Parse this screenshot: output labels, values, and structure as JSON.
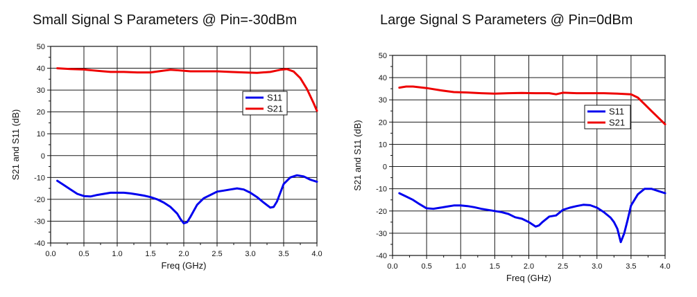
{
  "chart_data": [
    {
      "type": "line",
      "title": "Small Signal S Parameters @ Pin=-30dBm",
      "xlabel": "Freq (GHz)",
      "ylabel": "S21 and S11 (dB)",
      "xlim": [
        0,
        4
      ],
      "ylim": [
        -40,
        50
      ],
      "xticks": [
        "0.0",
        "0.5",
        "1.0",
        "1.5",
        "2.0",
        "2.5",
        "3.0",
        "3.5",
        "4.0"
      ],
      "yticks": [
        "-40",
        "-30",
        "-20",
        "-10",
        "0",
        "10",
        "20",
        "30",
        "40",
        "50"
      ],
      "grid": true,
      "legend_position": "center-right",
      "series": [
        {
          "name": "S11",
          "color": "#0000ee",
          "x": [
            0.1,
            0.2,
            0.3,
            0.4,
            0.5,
            0.6,
            0.7,
            0.8,
            0.9,
            1.0,
            1.1,
            1.2,
            1.3,
            1.4,
            1.5,
            1.6,
            1.7,
            1.8,
            1.85,
            1.9,
            1.95,
            2.0,
            2.05,
            2.1,
            2.2,
            2.3,
            2.4,
            2.5,
            2.6,
            2.7,
            2.8,
            2.9,
            3.0,
            3.1,
            3.2,
            3.3,
            3.35,
            3.4,
            3.45,
            3.5,
            3.6,
            3.7,
            3.8,
            3.9,
            4.0
          ],
          "values": [
            -11.5,
            -13.5,
            -15.5,
            -17.5,
            -18.5,
            -18.7,
            -18.0,
            -17.5,
            -17.0,
            -17.0,
            -17.0,
            -17.3,
            -17.8,
            -18.3,
            -19.0,
            -20.0,
            -21.5,
            -23.5,
            -25.0,
            -26.5,
            -29.0,
            -31.0,
            -30.5,
            -28.0,
            -22.5,
            -19.5,
            -18.0,
            -16.5,
            -16.0,
            -15.5,
            -15.0,
            -15.5,
            -17.0,
            -19.0,
            -21.5,
            -23.8,
            -23.5,
            -21.0,
            -17.0,
            -13.0,
            -10.0,
            -9.0,
            -9.5,
            -11.0,
            -12.0
          ]
        },
        {
          "name": "S21",
          "color": "#ee0000",
          "x": [
            0.1,
            0.3,
            0.5,
            0.7,
            0.9,
            1.1,
            1.3,
            1.5,
            1.7,
            1.8,
            1.9,
            2.1,
            2.3,
            2.5,
            2.7,
            2.9,
            3.1,
            3.3,
            3.45,
            3.55,
            3.65,
            3.75,
            3.85,
            3.95,
            4.0
          ],
          "values": [
            40,
            39.6,
            39.4,
            38.8,
            38.3,
            38.3,
            38.1,
            38.1,
            38.9,
            39.3,
            39.1,
            38.6,
            38.6,
            38.6,
            38.3,
            38.1,
            37.9,
            38.3,
            39.3,
            39.6,
            38.5,
            35.5,
            30.5,
            24.0,
            20.5
          ]
        }
      ]
    },
    {
      "type": "line",
      "title": "Large Signal S Parameters @ Pin=0dBm",
      "xlabel": "Freq (GHz)",
      "ylabel": "S21 and S11 (dB)",
      "xlim": [
        0,
        4
      ],
      "ylim": [
        -40,
        50
      ],
      "xticks": [
        "0.0",
        "0.5",
        "1.0",
        "1.5",
        "2.0",
        "2.5",
        "3.0",
        "3.5",
        "4.0"
      ],
      "yticks": [
        "-40",
        "-30",
        "-20",
        "-10",
        "0",
        "10",
        "20",
        "30",
        "40",
        "50"
      ],
      "grid": true,
      "legend_position": "center-right",
      "series": [
        {
          "name": "S11",
          "color": "#0000ee",
          "x": [
            0.1,
            0.2,
            0.3,
            0.4,
            0.5,
            0.6,
            0.7,
            0.8,
            0.9,
            1.0,
            1.1,
            1.2,
            1.3,
            1.4,
            1.5,
            1.6,
            1.7,
            1.8,
            1.9,
            2.0,
            2.1,
            2.15,
            2.2,
            2.3,
            2.4,
            2.5,
            2.6,
            2.7,
            2.8,
            2.9,
            3.0,
            3.1,
            3.2,
            3.25,
            3.3,
            3.35,
            3.4,
            3.45,
            3.5,
            3.6,
            3.7,
            3.8,
            3.9,
            4.0
          ],
          "values": [
            -12,
            -13.5,
            -15,
            -17,
            -18.8,
            -19,
            -18.5,
            -18,
            -17.5,
            -17.5,
            -17.8,
            -18.3,
            -19,
            -19.5,
            -20,
            -20.5,
            -21.3,
            -22.8,
            -23.5,
            -25,
            -27,
            -26.5,
            -25,
            -22.5,
            -22,
            -19.5,
            -18.5,
            -17.8,
            -17.2,
            -17.4,
            -18.5,
            -20.5,
            -23,
            -25,
            -28,
            -34,
            -30,
            -24,
            -17.5,
            -12.5,
            -10,
            -10,
            -11,
            -12
          ]
        },
        {
          "name": "S21",
          "color": "#ee0000",
          "x": [
            0.1,
            0.2,
            0.3,
            0.5,
            0.7,
            0.9,
            1.1,
            1.3,
            1.5,
            1.7,
            1.9,
            2.1,
            2.3,
            2.4,
            2.5,
            2.7,
            2.9,
            3.1,
            3.3,
            3.5,
            3.6,
            3.7,
            3.8,
            3.9,
            4.0
          ],
          "values": [
            35.5,
            36,
            36,
            35.3,
            34.3,
            33.5,
            33.3,
            33,
            32.8,
            33,
            33.1,
            33,
            33,
            32.5,
            33.2,
            33,
            33,
            33,
            32.8,
            32.5,
            31,
            28,
            25,
            22,
            19
          ]
        }
      ]
    }
  ]
}
